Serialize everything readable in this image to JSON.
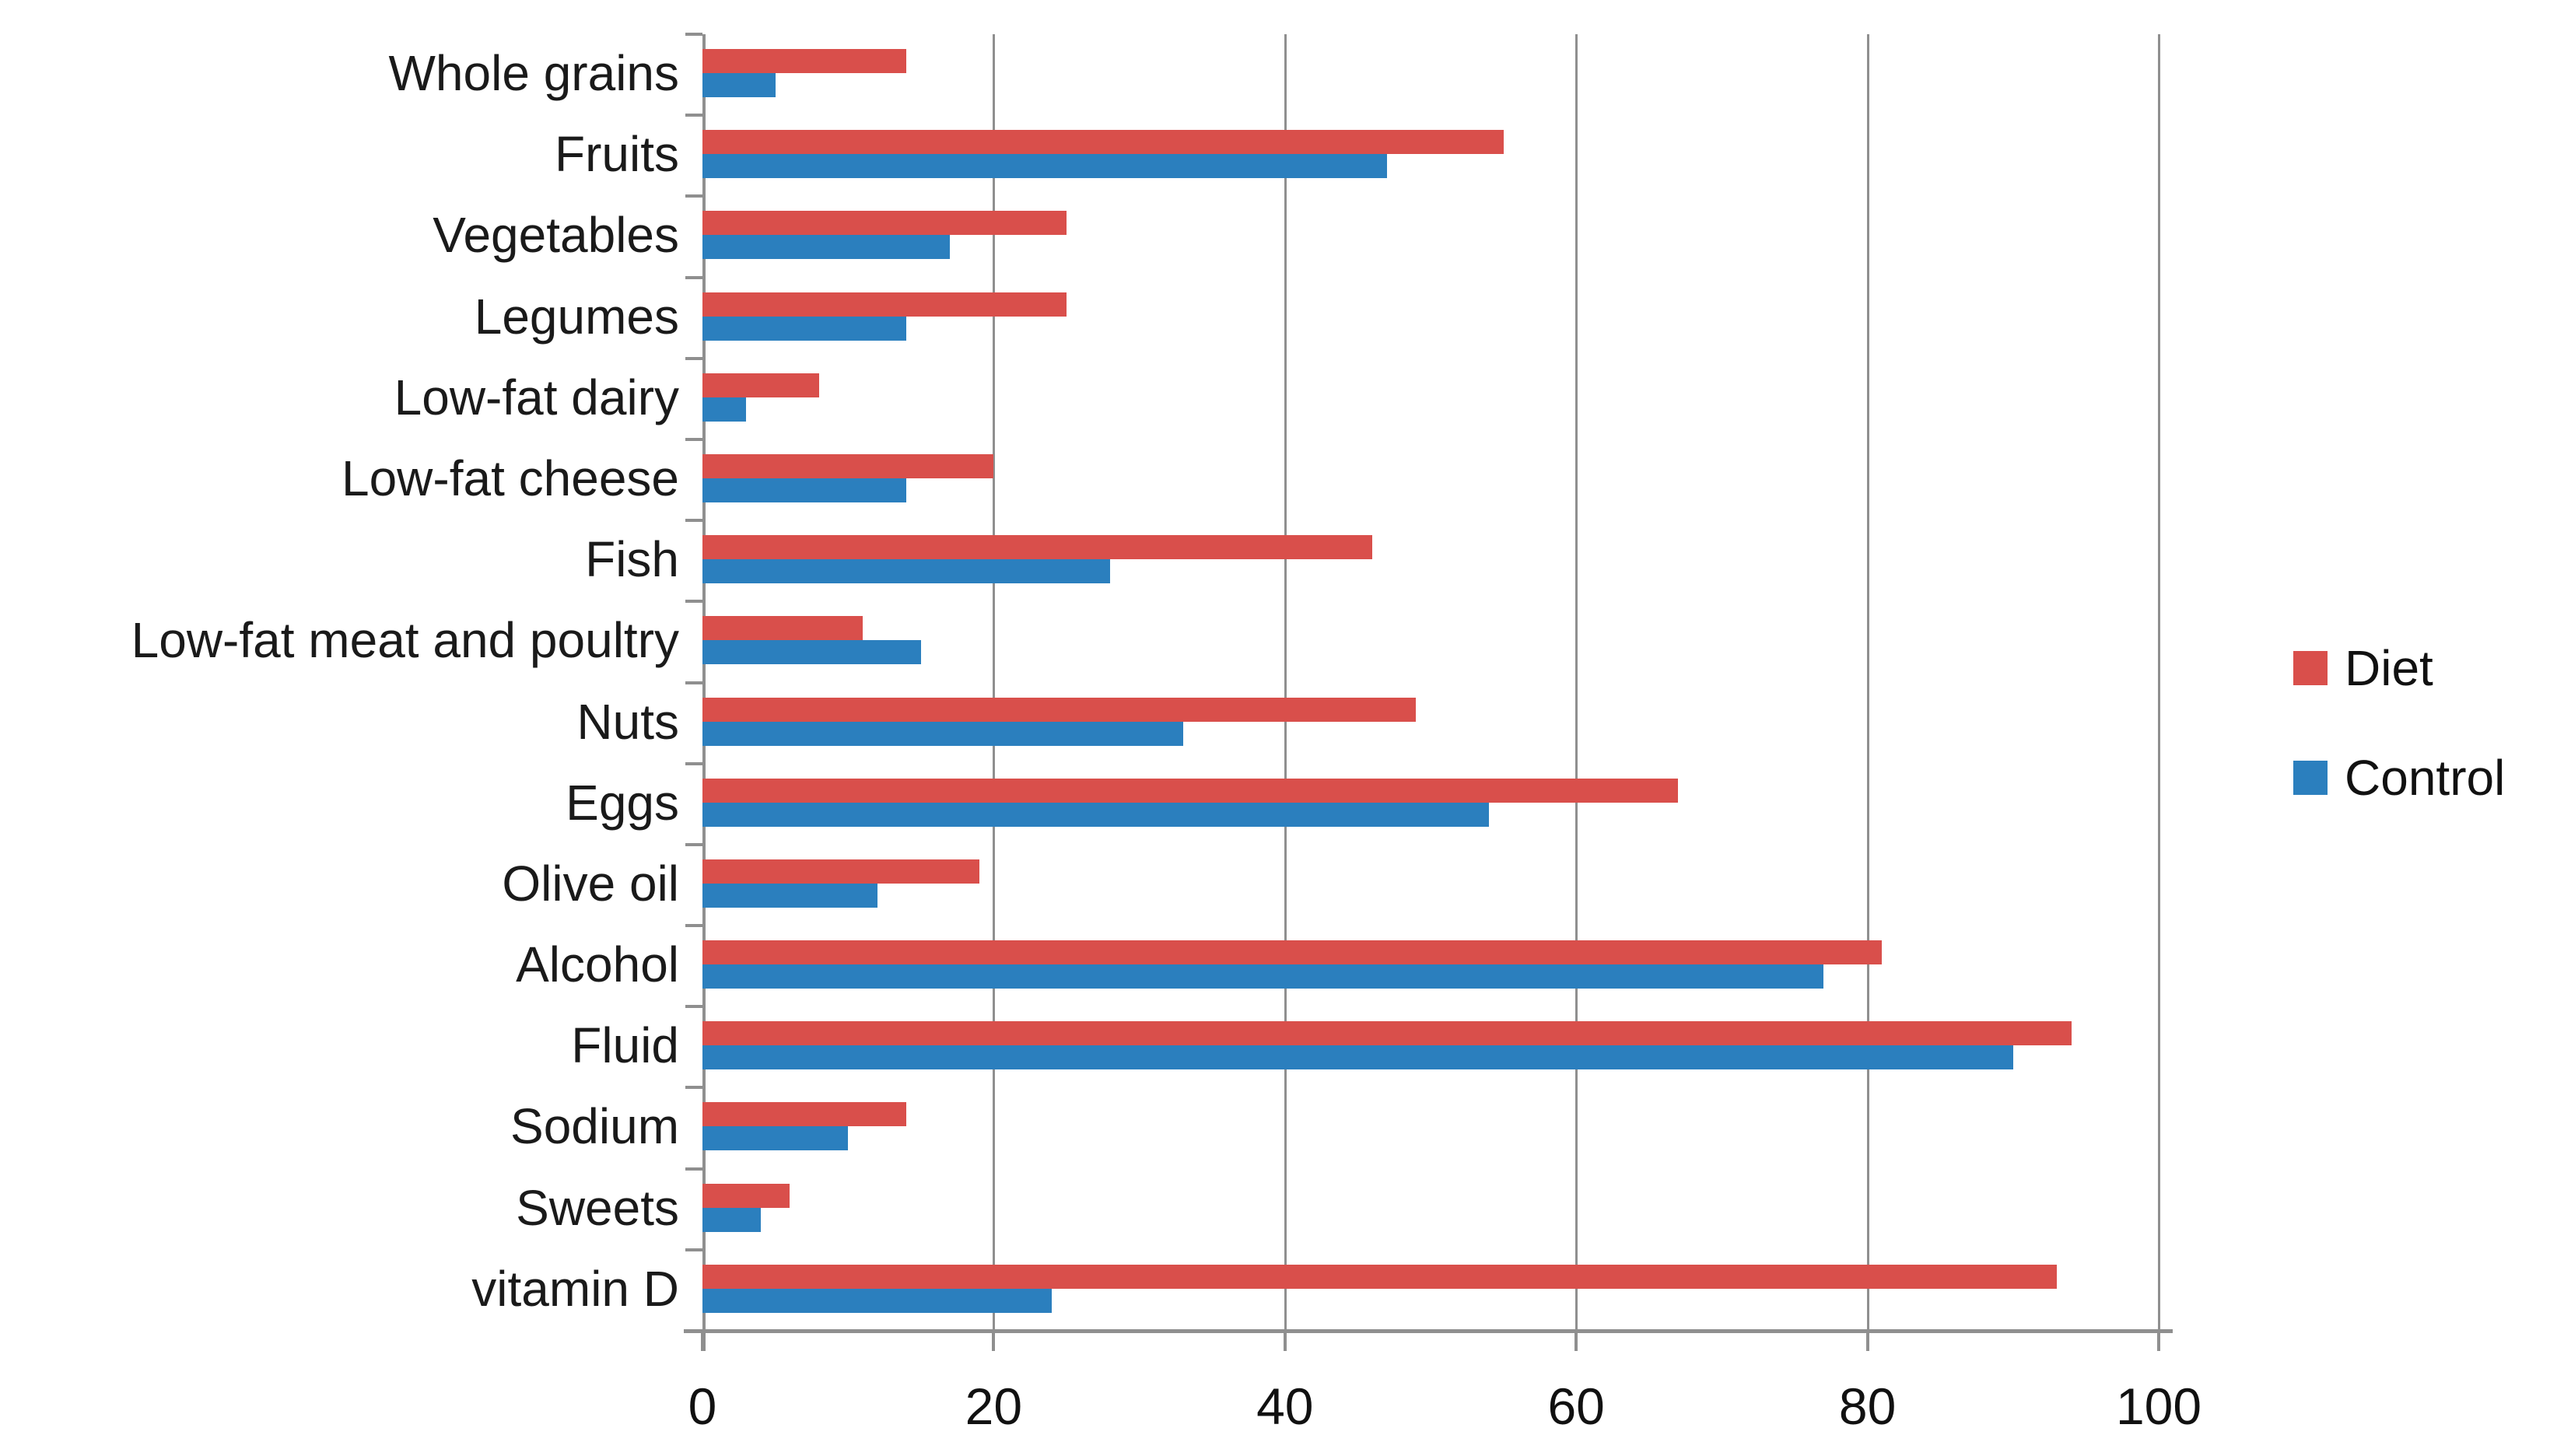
{
  "chart_data": {
    "type": "bar",
    "orientation": "horizontal",
    "title": "",
    "xlabel": "",
    "ylabel": "",
    "categories": [
      "Whole grains",
      "Fruits",
      "Vegetables",
      "Legumes",
      "Low-fat dairy",
      "Low-fat cheese",
      "Fish",
      "Low-fat meat and poultry",
      "Nuts",
      "Eggs",
      "Olive oil",
      "Alcohol",
      "Fluid",
      "Sodium",
      "Sweets",
      "vitamin D"
    ],
    "series": [
      {
        "name": "Diet",
        "color": "#d94f4b",
        "values": [
          14,
          55,
          25,
          25,
          8,
          20,
          46,
          11,
          49,
          67,
          19,
          81,
          94,
          14,
          6,
          93
        ]
      },
      {
        "name": "Control",
        "color": "#2b7fbe",
        "values": [
          5,
          47,
          17,
          14,
          3,
          14,
          28,
          15,
          33,
          54,
          12,
          77,
          90,
          10,
          4,
          24
        ]
      }
    ],
    "xlim": [
      0,
      100
    ],
    "x_tick_labels": [
      "0",
      "20",
      "40",
      "60",
      "80",
      "100"
    ],
    "x_tick_values": [
      0,
      20,
      40,
      60,
      80,
      100
    ],
    "grid": "vertical-gridlines-on",
    "legend_position": "right"
  },
  "colors": {
    "diet": "#d94f4b",
    "control": "#2b7fbe",
    "axis_gray": "#8f8f8f",
    "text": "#1a1a1a",
    "background": "#ffffff"
  }
}
